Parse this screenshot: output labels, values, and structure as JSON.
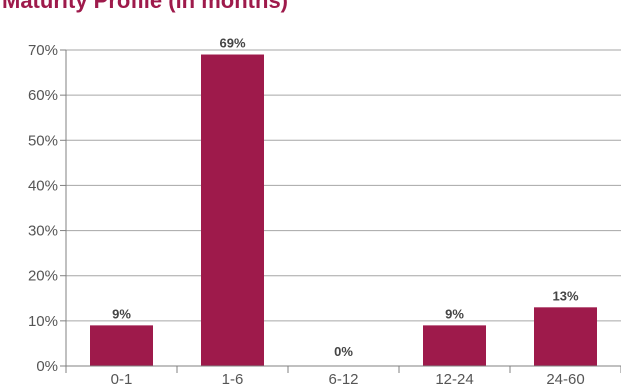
{
  "chart_data": {
    "type": "bar",
    "title": "Maturity Profile (in months)",
    "categories": [
      "0-1",
      "1-6",
      "6-12",
      "12-24",
      "24-60"
    ],
    "values": [
      9,
      69,
      0,
      9,
      13
    ],
    "data_labels": [
      "9%",
      "69%",
      "0%",
      "9%",
      "13%"
    ],
    "y_tick_labels": [
      "0%",
      "10%",
      "20%",
      "30%",
      "40%",
      "50%",
      "60%",
      "70%"
    ],
    "ylim": [
      0,
      70
    ],
    "xlabel": "",
    "ylabel": "",
    "grid": true,
    "legend": "none",
    "bar_color": "#9e1a4b"
  }
}
